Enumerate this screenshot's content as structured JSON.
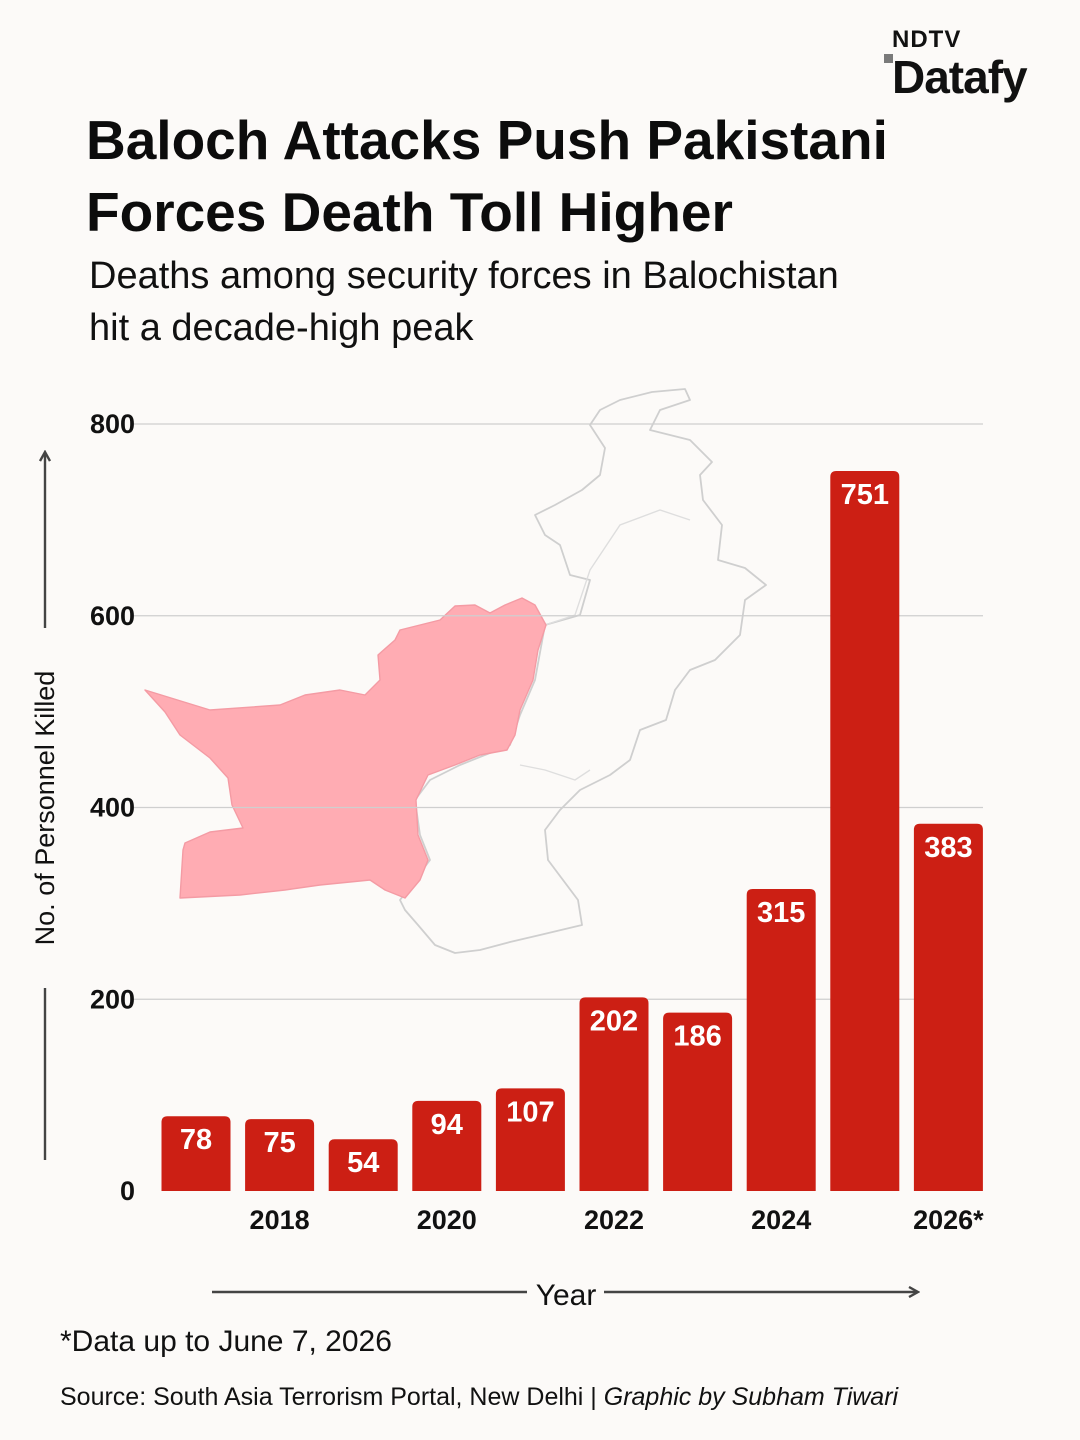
{
  "logo": {
    "top": "NDTV",
    "main": "Datafy"
  },
  "title_line1": "Baloch Attacks Push Pakistani",
  "title_line2": "Forces Death Toll Higher",
  "subtitle_line1": "Deaths among security forces in Balochistan",
  "subtitle_line2": "hit a decade-high peak",
  "note": "*Data up to June 7, 2026",
  "source": "Source: South Asia Terrorism Portal, New Delhi | ",
  "credit": "Graphic by Subham Tiwari",
  "colors": {
    "bar": "#cc1f14",
    "map_highlight": "#ffacb3",
    "grid": "#cfcfcf",
    "text": "#111111"
  },
  "chart_data": {
    "type": "bar",
    "x": [
      2017,
      2018,
      2019,
      2020,
      2021,
      2022,
      2023,
      2024,
      2025,
      2026
    ],
    "values": [
      78,
      75,
      54,
      94,
      107,
      202,
      186,
      315,
      751,
      383
    ],
    "data_labels": [
      "78",
      "75",
      "54",
      "94",
      "107",
      "202",
      "186",
      "315",
      "751",
      "383"
    ],
    "x_tick_labels": [
      {
        "x": 2018,
        "label": "2018"
      },
      {
        "x": 2020,
        "label": "2020"
      },
      {
        "x": 2022,
        "label": "2022"
      },
      {
        "x": 2024,
        "label": "2024"
      },
      {
        "x": 2026,
        "label": "2026*"
      }
    ],
    "y_ticks": [
      0,
      200,
      400,
      600,
      800
    ],
    "ylim": [
      0,
      800
    ],
    "xlabel": "Year",
    "ylabel": "No. of Personnel Killed",
    "grid": true,
    "background_image": "pakistan-map-with-balochistan-highlighted"
  }
}
